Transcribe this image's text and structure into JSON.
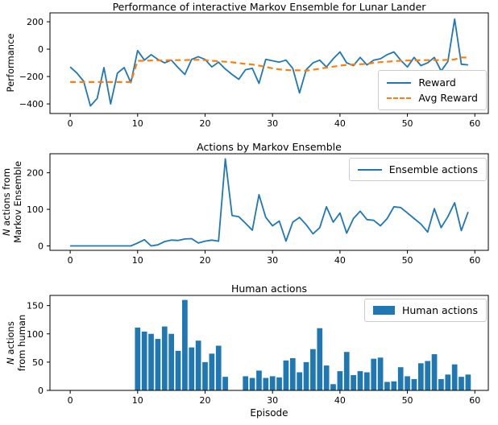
{
  "figure": {
    "xlabel": "Episode"
  },
  "chart_data": [
    {
      "type": "line",
      "title": "Performance of interactive Markov Ensemble for Lunar Lander",
      "ylabel": "Performance",
      "x_start": 0,
      "xticks": [
        0,
        10,
        20,
        30,
        40,
        50,
        60
      ],
      "yticks": [
        200,
        0,
        -200,
        -400
      ],
      "xlim": [
        -3,
        62
      ],
      "ylim": [
        -470,
        265
      ],
      "grid": false,
      "legend_position": "lower right",
      "series": [
        {
          "name": "Reward",
          "style": "solid",
          "color": "#1f77b4",
          "values": [
            -130,
            -175,
            -235,
            -415,
            -360,
            -135,
            -400,
            -175,
            -135,
            -245,
            -10,
            -80,
            -40,
            -75,
            -100,
            -80,
            -135,
            -185,
            -75,
            -55,
            -75,
            -130,
            -95,
            -145,
            -185,
            -220,
            -150,
            -140,
            -250,
            -75,
            -85,
            -95,
            -80,
            -140,
            -320,
            -150,
            -100,
            -80,
            -130,
            -70,
            -20,
            -100,
            -120,
            -60,
            -115,
            -80,
            -70,
            -40,
            -20,
            -80,
            -130,
            -60,
            -120,
            -100,
            -60,
            -160,
            -90,
            220,
            -110,
            -115
          ]
        },
        {
          "name": "Avg Reward",
          "style": "dashed",
          "color": "#ff7f0e",
          "values": [
            -240,
            -240,
            -240,
            -240,
            -240,
            -240,
            -240,
            -240,
            -240,
            -240,
            -85,
            -85,
            -83,
            -82,
            -82,
            -80,
            -80,
            -80,
            -78,
            -78,
            -80,
            -85,
            -88,
            -92,
            -96,
            -102,
            -108,
            -112,
            -120,
            -130,
            -140,
            -148,
            -152,
            -155,
            -155,
            -158,
            -150,
            -143,
            -135,
            -128,
            -120,
            -115,
            -112,
            -110,
            -108,
            -100,
            -95,
            -92,
            -88,
            -85,
            -83,
            -82,
            -80,
            -80,
            -80,
            -80,
            -78,
            -75,
            -60,
            -62
          ]
        }
      ]
    },
    {
      "type": "line",
      "title": "Actions by Markov Ensemble",
      "ylabel_lines": [
        [
          "N",
          " actions from"
        ],
        [
          "Markov Ensemble"
        ]
      ],
      "x_start": 0,
      "xticks": [
        0,
        10,
        20,
        30,
        40,
        50,
        60
      ],
      "yticks": [
        0,
        100,
        200
      ],
      "xlim": [
        -3,
        62
      ],
      "ylim": [
        -12,
        252
      ],
      "grid": false,
      "legend_position": "upper right",
      "series": [
        {
          "name": "Ensemble actions",
          "style": "solid",
          "color": "#1f77b4",
          "values": [
            0,
            0,
            0,
            0,
            0,
            0,
            0,
            0,
            0,
            0,
            8,
            17,
            0,
            3,
            12,
            16,
            15,
            19,
            20,
            8,
            13,
            16,
            13,
            238,
            83,
            80,
            62,
            43,
            140,
            78,
            55,
            68,
            13,
            65,
            78,
            58,
            33,
            50,
            107,
            65,
            90,
            35,
            75,
            95,
            72,
            70,
            55,
            75,
            107,
            105,
            90,
            75,
            60,
            38,
            102,
            50,
            80,
            118,
            42,
            93
          ]
        }
      ]
    },
    {
      "type": "bar",
      "title": "Human actions",
      "ylabel_lines": [
        [
          "N",
          " actions"
        ],
        [
          "from human"
        ]
      ],
      "xlabel": "Episode",
      "x_start": 0,
      "xticks": [
        0,
        10,
        20,
        30,
        40,
        50,
        60
      ],
      "yticks": [
        0,
        50,
        100,
        150
      ],
      "xlim": [
        -3,
        62
      ],
      "ylim": [
        0,
        168
      ],
      "grid": false,
      "legend_position": "upper right",
      "series": [
        {
          "name": "Human actions",
          "style": "bar",
          "color": "#1f77b4",
          "values": [
            0,
            0,
            0,
            0,
            0,
            0,
            0,
            0,
            0,
            0,
            111,
            104,
            100,
            91,
            113,
            100,
            70,
            160,
            76,
            88,
            50,
            65,
            79,
            24,
            0,
            0,
            25,
            22,
            35,
            22,
            25,
            23,
            53,
            57,
            32,
            50,
            73,
            110,
            44,
            11,
            34,
            68,
            27,
            34,
            32,
            56,
            58,
            15,
            16,
            41,
            25,
            20,
            48,
            52,
            64,
            20,
            28,
            46,
            24,
            28
          ]
        }
      ]
    }
  ]
}
